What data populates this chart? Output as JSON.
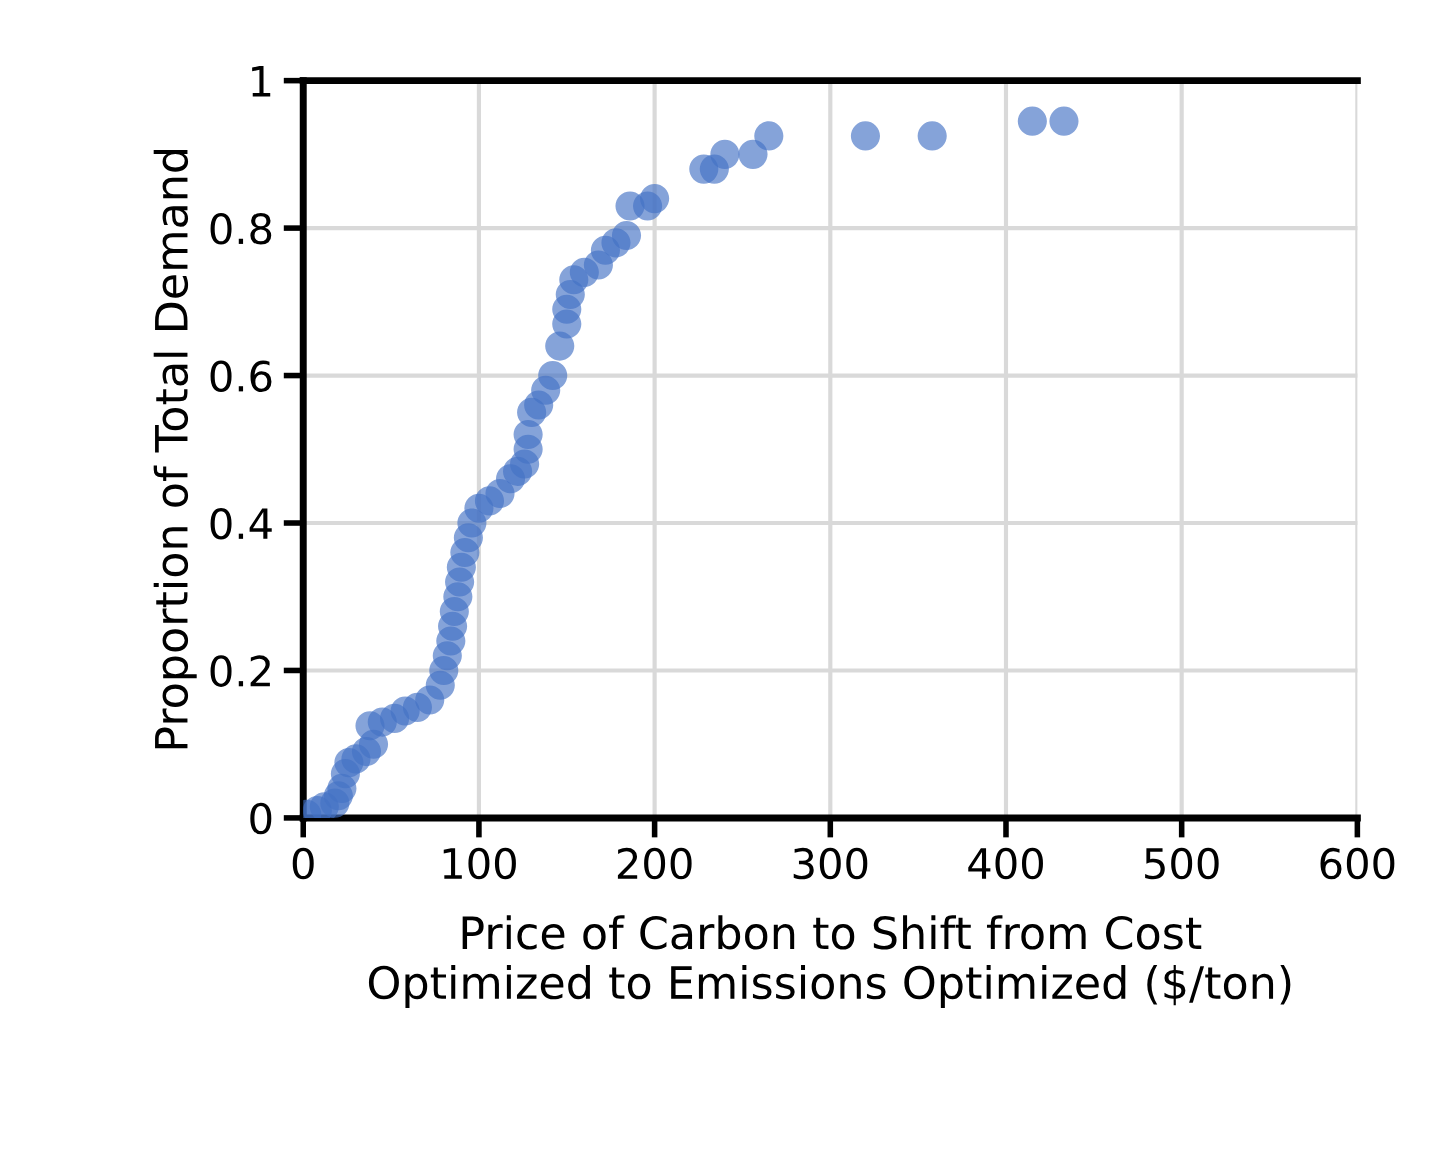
{
  "chart_data": {
    "type": "scatter",
    "xlabel": "Price of Carbon to Shift from Cost\nOptimized to Emissions Optimized ($/ton)",
    "ylabel": "Proportion of Total Demand",
    "xlim": [
      0,
      600
    ],
    "xticks": [
      0,
      100,
      200,
      300,
      400,
      500,
      600
    ],
    "ylim": [
      0,
      1
    ],
    "yticks": [
      0,
      {
        "value": 0.2,
        "label": "0.2"
      },
      {
        "value": 0.4,
        "label": "0.4"
      },
      {
        "value": 0.6,
        "label": "0.6"
      },
      {
        "value": 0.8,
        "label": "0.8"
      },
      1
    ],
    "grid": true,
    "marker": "circle",
    "series": [
      {
        "color": "#4472c4",
        "x": [
          2,
          8,
          12,
          18,
          20,
          22,
          24,
          26,
          30,
          36,
          40,
          38,
          45,
          52,
          58,
          65,
          72,
          78,
          80,
          82,
          84,
          85,
          86,
          88,
          89,
          90,
          92,
          94,
          96,
          100,
          106,
          112,
          118,
          122,
          126,
          128,
          128,
          130,
          134,
          138,
          142,
          146,
          150,
          150,
          152,
          154,
          160,
          168,
          172,
          178,
          184,
          186,
          196,
          200,
          228,
          234,
          240,
          256,
          265,
          320,
          358,
          415,
          433
        ],
        "values": [
          0.005,
          0.01,
          0.015,
          0.02,
          0.03,
          0.04,
          0.06,
          0.075,
          0.08,
          0.09,
          0.1,
          0.125,
          0.13,
          0.135,
          0.145,
          0.15,
          0.16,
          0.18,
          0.2,
          0.22,
          0.24,
          0.26,
          0.28,
          0.3,
          0.32,
          0.34,
          0.36,
          0.38,
          0.4,
          0.42,
          0.43,
          0.44,
          0.46,
          0.47,
          0.48,
          0.5,
          0.52,
          0.55,
          0.56,
          0.58,
          0.6,
          0.64,
          0.67,
          0.69,
          0.71,
          0.73,
          0.74,
          0.75,
          0.77,
          0.78,
          0.79,
          0.83,
          0.83,
          0.84,
          0.88,
          0.88,
          0.9,
          0.9,
          0.925,
          0.925,
          0.925,
          0.945,
          0.945
        ]
      }
    ]
  }
}
